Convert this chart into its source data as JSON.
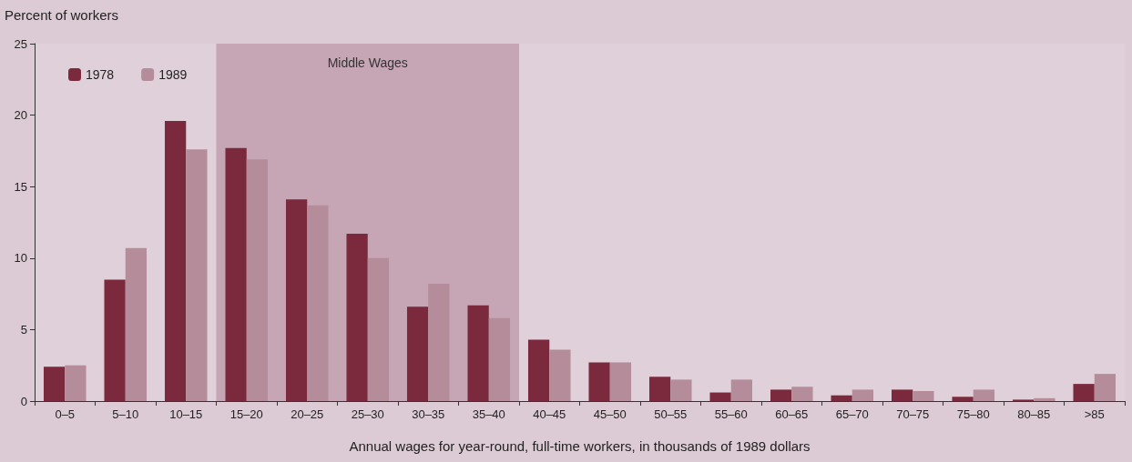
{
  "chart_data": {
    "type": "bar",
    "ylabel": "Percent of workers",
    "xlabel": "Annual wages for year-round, full-time workers, in thousands of 1989 dollars",
    "categories": [
      "0–5",
      "5–10",
      "10–15",
      "15–20",
      "20–25",
      "25–30",
      "30–35",
      "35–40",
      "40–45",
      "45–50",
      "50–55",
      "55–60",
      "60–65",
      "65–70",
      "70–75",
      "75–80",
      "80–85",
      ">85"
    ],
    "series": [
      {
        "name": "1978",
        "color": "#7a2a3c",
        "values": [
          2.4,
          8.5,
          19.6,
          17.7,
          14.1,
          11.7,
          6.6,
          6.7,
          4.3,
          2.7,
          1.7,
          0.6,
          0.8,
          0.4,
          0.8,
          0.3,
          0.1,
          1.2
        ]
      },
      {
        "name": "1989",
        "color": "#b48c9a",
        "values": [
          2.5,
          10.7,
          17.6,
          16.9,
          13.7,
          10.0,
          8.2,
          5.8,
          3.6,
          2.7,
          1.5,
          1.5,
          1.0,
          0.8,
          0.7,
          0.8,
          0.2,
          1.9
        ]
      }
    ],
    "ylim": [
      0,
      25
    ],
    "yticks": [
      0,
      5,
      10,
      15,
      20,
      25
    ],
    "grid": false,
    "legend": "top left",
    "bands": [
      {
        "axis": "x",
        "from": "15–20",
        "to": "35–40",
        "label": "Middle Wages",
        "color": "#c6a6b5"
      }
    ]
  }
}
